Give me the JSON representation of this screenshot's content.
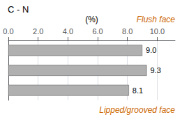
{
  "chart_data": {
    "type": "bar",
    "orientation": "horizontal",
    "title": "C - N",
    "xlabel": "(%)",
    "annotations": [
      {
        "text": "Flush face",
        "color": "#cc6600"
      },
      {
        "text": "Lipped/grooved face",
        "color": "#cc6600"
      }
    ],
    "categories": [
      null,
      null,
      null
    ],
    "values": [
      9.0,
      9.3,
      8.1
    ],
    "value_labels": [
      "9.0",
      "9.3",
      "8.1"
    ],
    "data_labels": true,
    "color": "#b0b0b0",
    "xlim": [
      0.0,
      11.2
    ],
    "xticks": [
      {
        "value": 0,
        "label": "0.0"
      },
      {
        "value": 2,
        "label": "2.0"
      },
      {
        "value": 4,
        "label": "4.0"
      },
      {
        "value": 6,
        "label": "6.0"
      },
      {
        "value": 8,
        "label": "8.0"
      },
      {
        "value": 10,
        "label": "10.0"
      }
    ],
    "grid": true,
    "tick_labels": "x"
  }
}
